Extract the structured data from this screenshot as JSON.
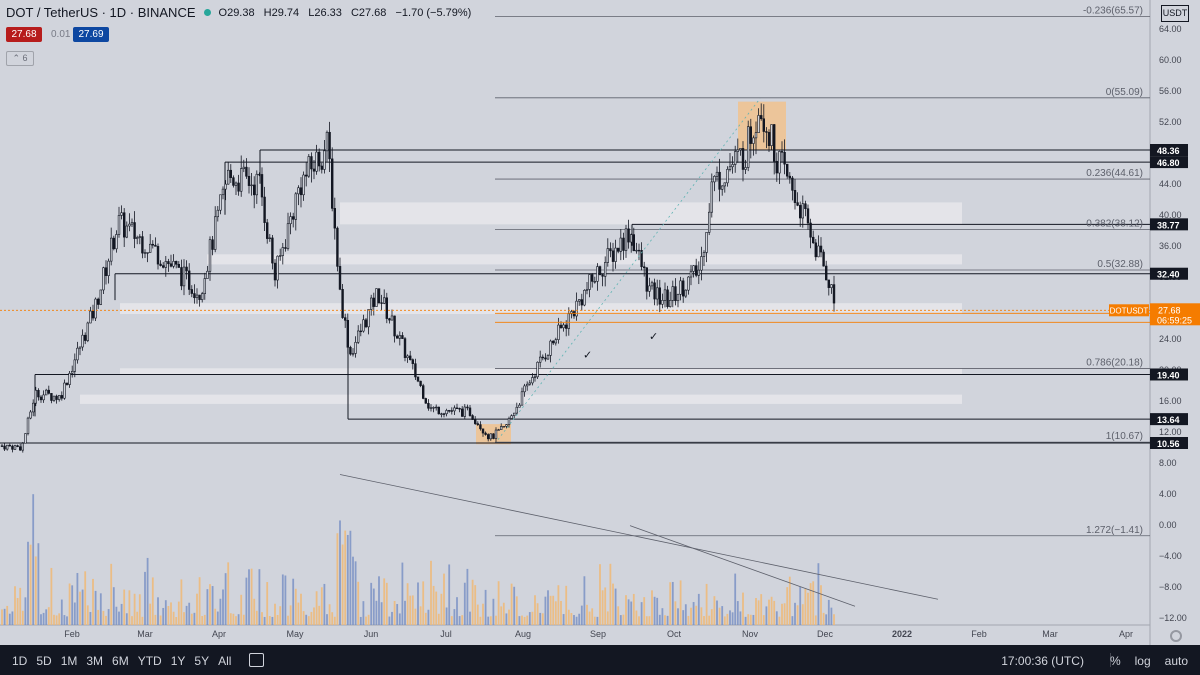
{
  "header": {
    "symbol": "DOT / TetherUS · 1D · BINANCE",
    "open": "O29.38",
    "high": "H29.74",
    "low": "L26.33",
    "close": "C27.68",
    "change": "−1.70 (−5.79%)",
    "bid": "27.68",
    "spread": "0.01",
    "ask": "27.69",
    "collapsed_count": "6",
    "currency": "USDT"
  },
  "colors": {
    "background": "#d1d4dc",
    "candle": "#131722",
    "volume_up": "#f0b975",
    "volume_down": "#7b92c4",
    "last_price": "#f57c00",
    "zone": "#e9eaee",
    "highlight": "#f2c18a"
  },
  "chart_data": {
    "type": "candlestick",
    "symbol": "DOTUSDT",
    "timeframe": "1D",
    "y_ticks": [
      "64.00",
      "60.00",
      "56.00",
      "52.00",
      "48.00",
      "44.00",
      "40.00",
      "36.00",
      "32.00",
      "28.00",
      "24.00",
      "20.00",
      "16.00",
      "12.00",
      "8.00",
      "4.00",
      "0.00",
      "−4.00",
      "−8.00",
      "−12.00"
    ],
    "x_ticks": [
      "Feb",
      "Mar",
      "Apr",
      "May",
      "Jun",
      "Jul",
      "Aug",
      "Sep",
      "Oct",
      "Nov",
      "Dec",
      "2022",
      "Feb",
      "Mar",
      "Apr"
    ],
    "ylim": [
      -13,
      67
    ],
    "price_labels": [
      "48.36",
      "46.80",
      "38.77",
      "32.40",
      "19.40",
      "13.64",
      "10.56"
    ],
    "last_price": {
      "symbol": "DOTUSDT",
      "value": "27.68",
      "countdown": "06:59:25"
    },
    "fib_levels": [
      {
        "label": "-0.236(65.57)",
        "value": 65.57
      },
      {
        "label": "0(55.09)",
        "value": 55.09
      },
      {
        "label": "0.236(44.61)",
        "value": 44.61
      },
      {
        "label": "0.382(38.12)",
        "value": 38.12
      },
      {
        "label": "0.5(32.88)",
        "value": 32.88
      },
      {
        "label": "0.786(20.18)",
        "value": 20.18
      },
      {
        "label": "1(10.67)",
        "value": 10.67
      },
      {
        "label": "1.272(−1.41)",
        "value": -1.41
      }
    ],
    "key_points": [
      {
        "date": "Jan",
        "price": 10.56
      },
      {
        "date": "Feb",
        "price": 19.4
      },
      {
        "date": "Mar",
        "price": 38
      },
      {
        "date": "Apr",
        "price": 46.8
      },
      {
        "date": "May",
        "price": 48.36
      },
      {
        "date": "Jun",
        "price": 22
      },
      {
        "date": "Jul",
        "price": 15
      },
      {
        "date": "Aug",
        "price": 20
      },
      {
        "date": "Sep",
        "price": 34
      },
      {
        "date": "Oct",
        "price": 40
      },
      {
        "date": "Nov",
        "price": 55.09
      },
      {
        "date": "Dec",
        "price": 27.68
      }
    ]
  },
  "bottombar": {
    "ranges": [
      "1D",
      "5D",
      "1M",
      "3M",
      "6M",
      "YTD",
      "1Y",
      "5Y",
      "All"
    ],
    "time": "17:00:36 (UTC)",
    "percent": "%",
    "log": "log",
    "auto": "auto"
  }
}
